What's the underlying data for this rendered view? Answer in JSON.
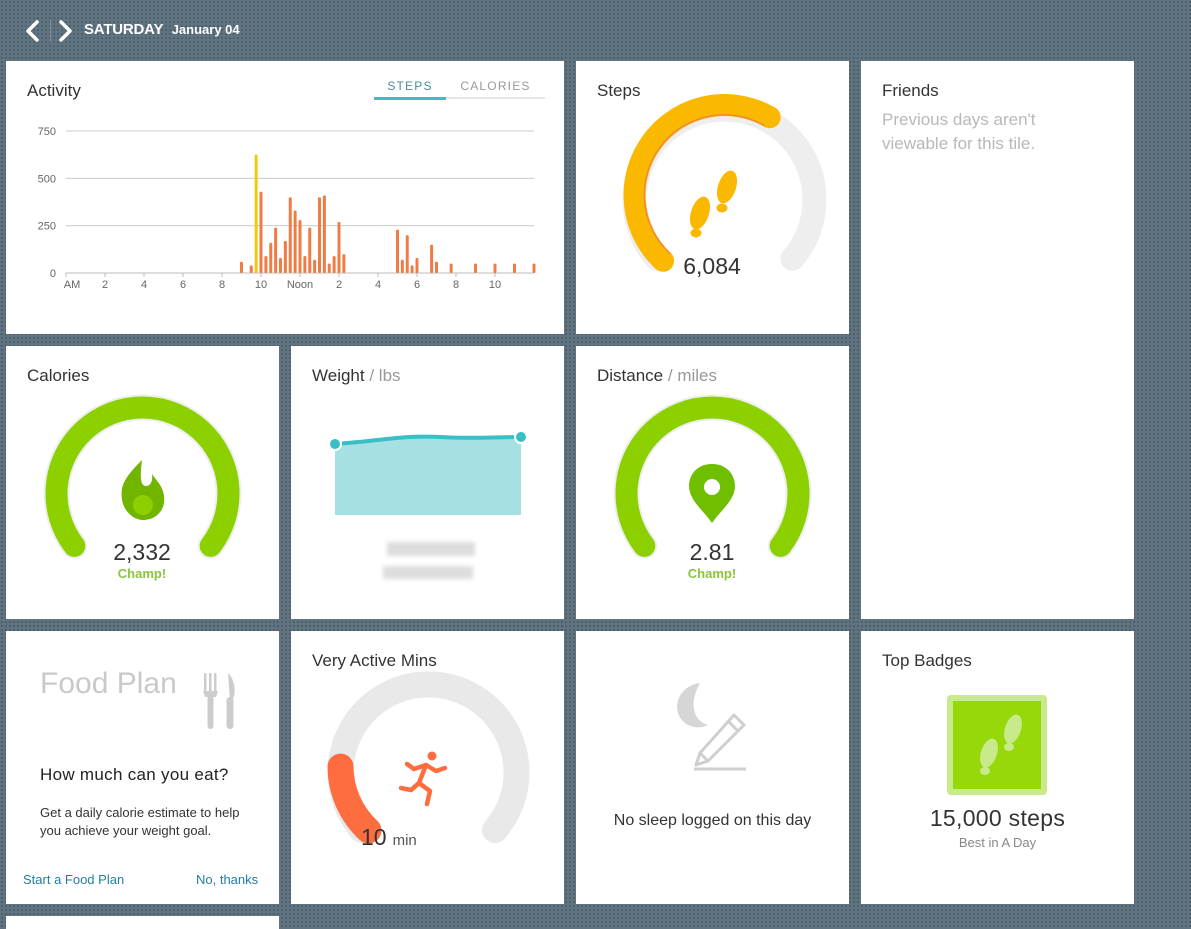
{
  "header": {
    "day": "SATURDAY",
    "month_date": "January 04"
  },
  "activity": {
    "title": "Activity",
    "tabs": [
      "STEPS",
      "CALORIES"
    ],
    "active_tab": "STEPS",
    "colors": {
      "bar": "#f07c45",
      "highlight": "#f2c80f",
      "grid": "#cccccc"
    }
  },
  "chart_data": {
    "type": "bar",
    "title": "Activity",
    "ylim": [
      0,
      750
    ],
    "yticks": [
      "0",
      "250",
      "500",
      "750"
    ],
    "xtick_labels": [
      "AM",
      "2",
      "4",
      "6",
      "8",
      "10",
      "Noon",
      "2",
      "4",
      "6",
      "8",
      "10"
    ],
    "x_units": "hour of day (0-24)",
    "series": [
      {
        "values": [
          {
            "x": 9.0,
            "y": 60
          },
          {
            "x": 9.5,
            "y": 40
          },
          {
            "x": 9.75,
            "y": 625,
            "highlight": true
          },
          {
            "x": 10.0,
            "y": 430
          },
          {
            "x": 10.25,
            "y": 90
          },
          {
            "x": 10.5,
            "y": 160
          },
          {
            "x": 10.75,
            "y": 240
          },
          {
            "x": 11.0,
            "y": 80
          },
          {
            "x": 11.25,
            "y": 170
          },
          {
            "x": 11.5,
            "y": 400
          },
          {
            "x": 11.75,
            "y": 330
          },
          {
            "x": 12.0,
            "y": 280
          },
          {
            "x": 12.25,
            "y": 90
          },
          {
            "x": 12.5,
            "y": 240
          },
          {
            "x": 12.75,
            "y": 70
          },
          {
            "x": 13.0,
            "y": 400
          },
          {
            "x": 13.25,
            "y": 410
          },
          {
            "x": 13.5,
            "y": 50
          },
          {
            "x": 13.75,
            "y": 90
          },
          {
            "x": 14.0,
            "y": 270
          },
          {
            "x": 14.25,
            "y": 100
          },
          {
            "x": 17.0,
            "y": 230
          },
          {
            "x": 17.25,
            "y": 70
          },
          {
            "x": 17.5,
            "y": 200
          },
          {
            "x": 17.75,
            "y": 40
          },
          {
            "x": 18.0,
            "y": 80
          },
          {
            "x": 18.75,
            "y": 150
          },
          {
            "x": 19.0,
            "y": 60
          },
          {
            "x": 19.75,
            "y": 50
          },
          {
            "x": 21.0,
            "y": 50
          },
          {
            "x": 22.0,
            "y": 50
          },
          {
            "x": 23.0,
            "y": 50
          },
          {
            "x": 24.0,
            "y": 50
          }
        ]
      }
    ]
  },
  "steps": {
    "title": "Steps",
    "value": "6,084",
    "progress": 0.61,
    "color": "#fbb800",
    "goal_marker_color": "#f07c45"
  },
  "friends": {
    "title": "Friends",
    "message": "Previous days aren't viewable for this tile."
  },
  "calories": {
    "title": "Calories",
    "value": "2,332",
    "status": "Champ!",
    "progress": 1.0,
    "color": "#8cd000"
  },
  "weight": {
    "title": "Weight",
    "unit": "/ lbs",
    "line_color": "#3bbfc7",
    "fill_color": "#a7e0e3"
  },
  "distance": {
    "title": "Distance",
    "unit": "/ miles",
    "value": "2.81",
    "status": "Champ!",
    "progress": 1.0,
    "color": "#8cd000"
  },
  "food": {
    "title": "Food Plan",
    "question": "How much can you eat?",
    "description": "Get a daily calorie estimate to help you achieve your weight goal.",
    "start_link": "Start a Food Plan",
    "decline_link": "No, thanks"
  },
  "very_active": {
    "title": "Very Active Mins",
    "value": "10",
    "unit": "min",
    "progress": 0.17,
    "color": "#fd6d3f"
  },
  "sleep": {
    "message": "No sleep logged on this day"
  },
  "badges": {
    "title": "Top Badges",
    "value": "15,000 steps",
    "subtitle": "Best in A Day",
    "color": "#96d80a"
  },
  "icons": {
    "prev": "chevron-left-icon",
    "next": "chevron-right-icon",
    "steps": "footprints-icon",
    "calories": "flame-icon",
    "distance": "map-pin-icon",
    "food": "fork-knife-icon",
    "very_active": "running-person-icon",
    "sleep": "moon-pencil-icon",
    "badge": "footprints-badge-icon"
  }
}
